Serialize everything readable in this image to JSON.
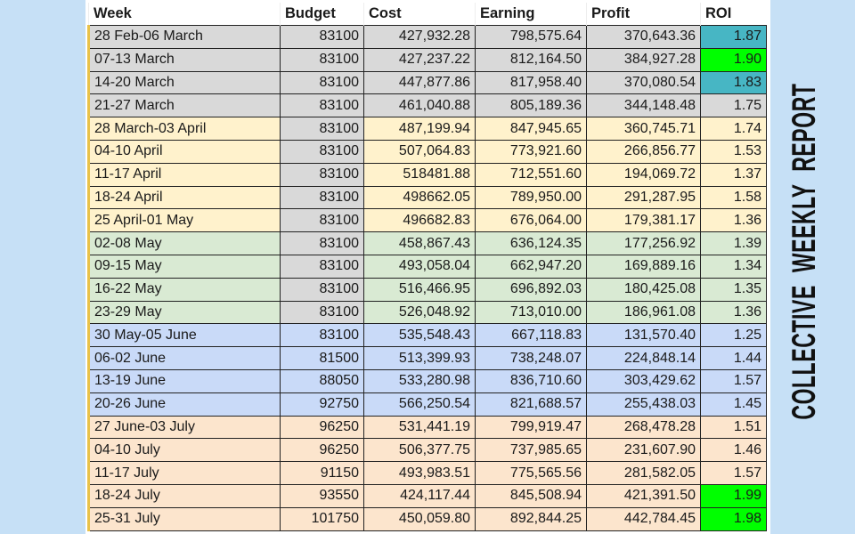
{
  "title": "COLLECTIVE  WEEKLY  REPORT",
  "colors": {
    "gray": "#d9d9d9",
    "yellow": "#fff2cc",
    "green": "#d9ead3",
    "blue": "#c9daf8",
    "peach": "#fce5cd",
    "roi_teal": "#47b6c4",
    "roi_lime": "#00ff00",
    "background": "#c6e0f6"
  },
  "headers": [
    "Week",
    "Budget",
    "Cost",
    "Earning",
    "Profit",
    "ROI"
  ],
  "rows": [
    {
      "week": "28 Feb-06 March",
      "budget": "83100",
      "cost": "427,932.28",
      "earning": "798,575.64",
      "profit": "370,643.36",
      "roi": "1.87",
      "group": "gray",
      "roi_highlight": "teal"
    },
    {
      "week": "07-13 March",
      "budget": "83100",
      "cost": "427,237.22",
      "earning": "812,164.50",
      "profit": "384,927.28",
      "roi": "1.90",
      "group": "gray",
      "roi_highlight": "lime"
    },
    {
      "week": "14-20 March",
      "budget": "83100",
      "cost": "447,877.86",
      "earning": "817,958.40",
      "profit": "370,080.54",
      "roi": "1.83",
      "group": "gray",
      "roi_highlight": "teal"
    },
    {
      "week": "21-27 March",
      "budget": "83100",
      "cost": "461,040.88",
      "earning": "805,189.36",
      "profit": "344,148.48",
      "roi": "1.75",
      "group": "gray"
    },
    {
      "week": "28 March-03 April",
      "budget": "83100",
      "cost": "487,199.94",
      "earning": "847,945.65",
      "profit": "360,745.71",
      "roi": "1.74",
      "group": "yellow",
      "budget_gray": true
    },
    {
      "week": "04-10 April",
      "budget": "83100",
      "cost": "507,064.83",
      "earning": "773,921.60",
      "profit": "266,856.77",
      "roi": "1.53",
      "group": "yellow",
      "budget_gray": true
    },
    {
      "week": "11-17 April",
      "budget": "83100",
      "cost": "518481.88",
      "earning": "712,551.60",
      "profit": "194,069.72",
      "roi": "1.37",
      "group": "yellow",
      "budget_gray": true
    },
    {
      "week": "18-24 April",
      "budget": "83100",
      "cost": "498662.05",
      "earning": "789,950.00",
      "profit": "291,287.95",
      "roi": "1.58",
      "group": "yellow",
      "budget_gray": true
    },
    {
      "week": "25 April-01 May",
      "budget": "83100",
      "cost": "496682.83",
      "earning": "676,064.00",
      "profit": "179,381.17",
      "roi": "1.36",
      "group": "yellow",
      "budget_gray": true
    },
    {
      "week": "02-08 May",
      "budget": "83100",
      "cost": "458,867.43",
      "earning": "636,124.35",
      "profit": "177,256.92",
      "roi": "1.39",
      "group": "green",
      "budget_gray": true
    },
    {
      "week": "09-15 May",
      "budget": "83100",
      "cost": "493,058.04",
      "earning": "662,947.20",
      "profit": "169,889.16",
      "roi": "1.34",
      "group": "green",
      "budget_gray": true
    },
    {
      "week": "16-22 May",
      "budget": "83100",
      "cost": "516,466.95",
      "earning": "696,892.03",
      "profit": "180,425.08",
      "roi": "1.35",
      "group": "green",
      "budget_gray": true
    },
    {
      "week": "23-29 May",
      "budget": "83100",
      "cost": "526,048.92",
      "earning": "713,010.00",
      "profit": "186,961.08",
      "roi": "1.36",
      "group": "green",
      "budget_gray": true
    },
    {
      "week": "30 May-05 June",
      "budget": "83100",
      "cost": "535,548.43",
      "earning": "667,118.83",
      "profit": "131,570.40",
      "roi": "1.25",
      "group": "blue"
    },
    {
      "week": "06-02 June",
      "budget": "81500",
      "cost": "513,399.93",
      "earning": "738,248.07",
      "profit": "224,848.14",
      "roi": "1.44",
      "group": "blue"
    },
    {
      "week": "13-19 June",
      "budget": "88050",
      "cost": "533,280.98",
      "earning": "836,710.60",
      "profit": "303,429.62",
      "roi": "1.57",
      "group": "blue"
    },
    {
      "week": "20-26 June",
      "budget": "92750",
      "cost": "566,250.54",
      "earning": "821,688.57",
      "profit": "255,438.03",
      "roi": "1.45",
      "group": "blue"
    },
    {
      "week": "27 June-03 July",
      "budget": "96250",
      "cost": "531,441.19",
      "earning": "799,919.47",
      "profit": "268,478.28",
      "roi": "1.51",
      "group": "peach"
    },
    {
      "week": "04-10 July",
      "budget": "96250",
      "cost": "506,377.75",
      "earning": "737,985.65",
      "profit": "231,607.90",
      "roi": "1.46",
      "group": "peach"
    },
    {
      "week": "11-17 July",
      "budget": "91150",
      "cost": "493,983.51",
      "earning": "775,565.56",
      "profit": "281,582.05",
      "roi": "1.57",
      "group": "peach"
    },
    {
      "week": "18-24 July",
      "budget": "93550",
      "cost": "424,117.44",
      "earning": "845,508.94",
      "profit": "421,391.50",
      "roi": "1.99",
      "group": "peach",
      "roi_highlight": "lime"
    },
    {
      "week": "25-31 July",
      "budget": "101750",
      "cost": "450,059.80",
      "earning": "892,844.25",
      "profit": "442,784.45",
      "roi": "1.98",
      "group": "peach",
      "roi_highlight": "lime"
    }
  ]
}
